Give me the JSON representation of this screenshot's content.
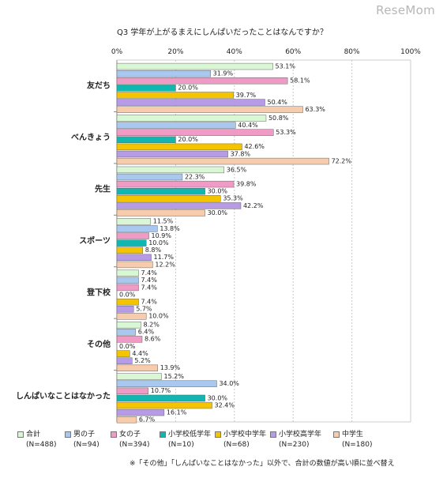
{
  "watermark": "ReseMom",
  "question": "Q3 学年が上がるまえにしんぱいだったことはなんですか？",
  "footnote": "※「その他」「しんぱいなことはなかった」以外で、合計の数値が高い順に並べ替え",
  "colors": {
    "合計": "#d9f7d4",
    "男の子": "#a9c8ef",
    "女の子": "#ef9bc6",
    "小学校低学年": "#12b6b0",
    "小学校中学年": "#f5c400",
    "小学校高学年": "#b79be6",
    "中学生": "#f7ccac"
  },
  "legend": [
    {
      "name": "合計",
      "n": "(N=488)",
      "color": "#d9f7d4"
    },
    {
      "name": "男の子",
      "n": "(N=94)",
      "color": "#a9c8ef"
    },
    {
      "name": "女の子",
      "n": "(N=394)",
      "color": "#ef9bc6"
    },
    {
      "name": "小学校低学年",
      "n": "(N=10)",
      "color": "#12b6b0"
    },
    {
      "name": "小学校中学年",
      "n": "(N=68)",
      "color": "#f5c400"
    },
    {
      "name": "小学校高学年",
      "n": "(N=230)",
      "color": "#b79be6"
    },
    {
      "name": "中学生",
      "n": "(N=180)",
      "color": "#f7ccac"
    }
  ],
  "chart_data": {
    "type": "bar",
    "orientation": "horizontal",
    "title": "Q3 学年が上がるまえにしんぱいだったことはなんですか？",
    "categories": [
      "友だち",
      "べんきょう",
      "先生",
      "スポーツ",
      "登下校",
      "その他",
      "しんぱいなことはなかった"
    ],
    "xlim": [
      0,
      100
    ],
    "x_ticks": [
      "0%",
      "20%",
      "40%",
      "60%",
      "80%",
      "100%"
    ],
    "grid": true,
    "legend_position": "bottom",
    "series": [
      {
        "name": "合計",
        "values": [
          53.1,
          50.8,
          36.5,
          11.5,
          7.4,
          8.2,
          15.2
        ]
      },
      {
        "name": "男の子",
        "values": [
          31.9,
          40.4,
          22.3,
          13.8,
          7.4,
          6.4,
          34.0
        ]
      },
      {
        "name": "女の子",
        "values": [
          58.1,
          53.3,
          39.8,
          10.9,
          7.4,
          8.6,
          10.7
        ]
      },
      {
        "name": "小学校低学年",
        "values": [
          20.0,
          20.0,
          30.0,
          10.0,
          0.0,
          0.0,
          30.0
        ]
      },
      {
        "name": "小学校中学年",
        "values": [
          39.7,
          42.6,
          35.3,
          8.8,
          7.4,
          4.4,
          32.4
        ]
      },
      {
        "name": "小学校高学年",
        "values": [
          50.4,
          37.8,
          42.2,
          11.7,
          5.7,
          5.2,
          16.1
        ]
      },
      {
        "name": "中学生",
        "values": [
          63.3,
          72.2,
          30.0,
          12.2,
          10.0,
          13.9,
          6.7
        ]
      }
    ]
  }
}
